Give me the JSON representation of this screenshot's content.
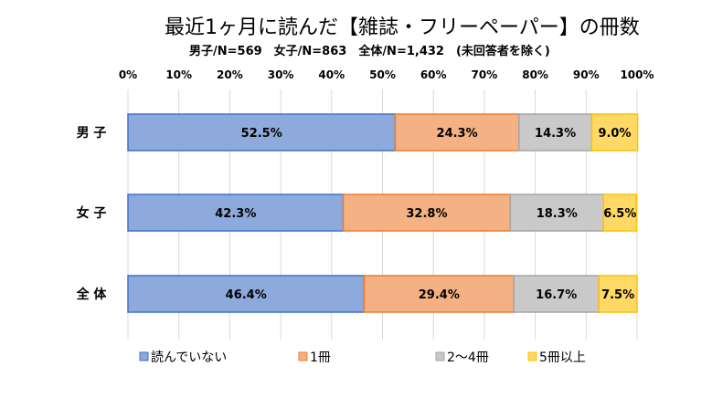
{
  "chart_data": {
    "type": "bar",
    "orientation": "horizontal",
    "stacked": true,
    "percent_stacked": true,
    "title": "最近1ヶ月に読んだ【雑誌・フリーペーパー】の冊数",
    "subtitle": "男子/N=569　女子/N=863　全体/N=1,432　(未回答者を除く)",
    "categories": [
      "男 子",
      "女 子",
      "全 体"
    ],
    "x_ticks": [
      "0%",
      "10%",
      "20%",
      "30%",
      "40%",
      "50%",
      "60%",
      "70%",
      "80%",
      "90%",
      "100%"
    ],
    "xlim": [
      0,
      100
    ],
    "grid": true,
    "legend_position": "bottom",
    "series": [
      {
        "name": "読んでいない",
        "values": [
          52.5,
          42.3,
          46.4
        ],
        "labels": [
          "52.5%",
          "42.3%",
          "46.4%"
        ],
        "color": "#8EA9DB",
        "border": "#4472C4"
      },
      {
        "name": "1冊",
        "values": [
          24.3,
          32.8,
          29.4
        ],
        "labels": [
          "24.3%",
          "32.8%",
          "29.4%"
        ],
        "color": "#F4B183",
        "border": "#ED7D31"
      },
      {
        "name": "2～4冊",
        "values": [
          14.3,
          18.3,
          16.7
        ],
        "labels": [
          "14.3%",
          "18.3%",
          "16.7%"
        ],
        "color": "#C9C9C9",
        "border": "#A5A5A5"
      },
      {
        "name": "5冊以上",
        "values": [
          9.0,
          6.5,
          7.5
        ],
        "labels": [
          "9.0%",
          "6.5%",
          "7.5%"
        ],
        "color": "#FFD966",
        "border": "#FFC000"
      }
    ]
  }
}
